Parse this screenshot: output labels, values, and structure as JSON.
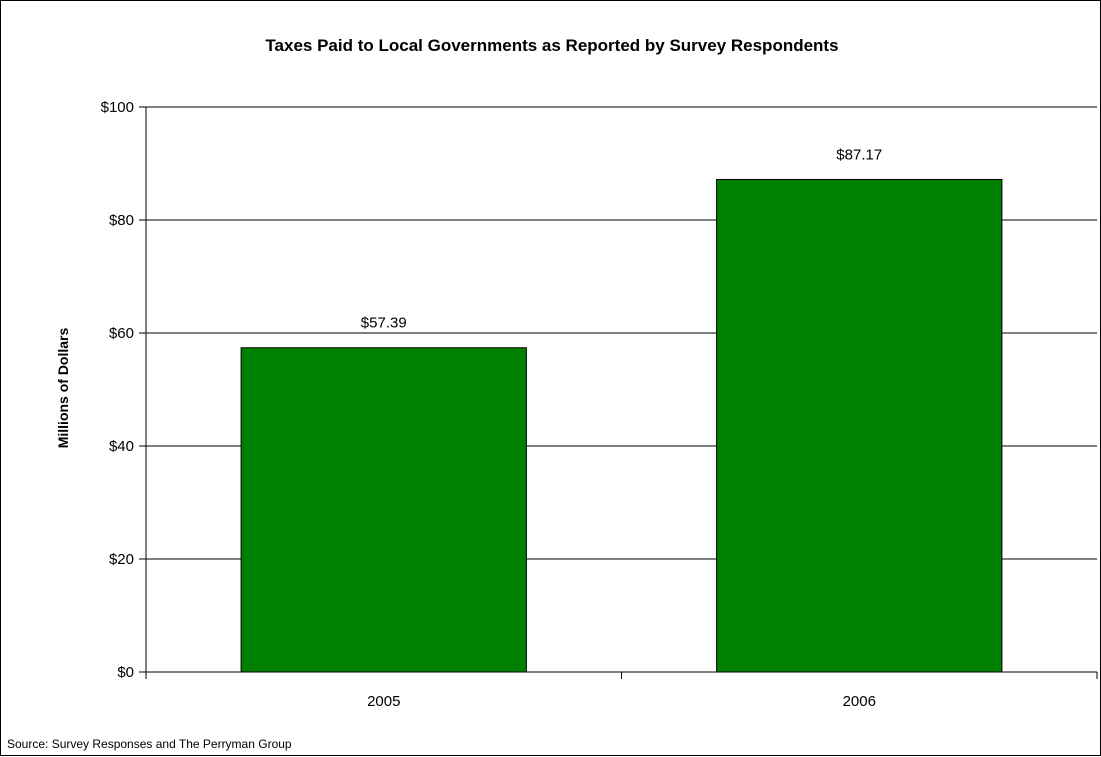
{
  "chart_data": {
    "type": "bar",
    "title": "Taxes Paid to Local Governments as Reported by Survey Respondents",
    "xlabel": "",
    "ylabel": "Millions of Dollars",
    "categories": [
      "2005",
      "2006"
    ],
    "values": [
      57.39,
      87.17
    ],
    "data_labels": [
      "$57.39",
      "$87.17"
    ],
    "ylim": [
      0,
      100
    ],
    "y_ticks": [
      0,
      20,
      40,
      60,
      80,
      100
    ],
    "y_tick_labels": [
      "$0",
      "$20",
      "$40",
      "$60",
      "$80",
      "$100"
    ],
    "grid": true,
    "legend": "none",
    "bar_color": "#008000",
    "source": "Source: Survey Responses and The Perryman Group"
  }
}
